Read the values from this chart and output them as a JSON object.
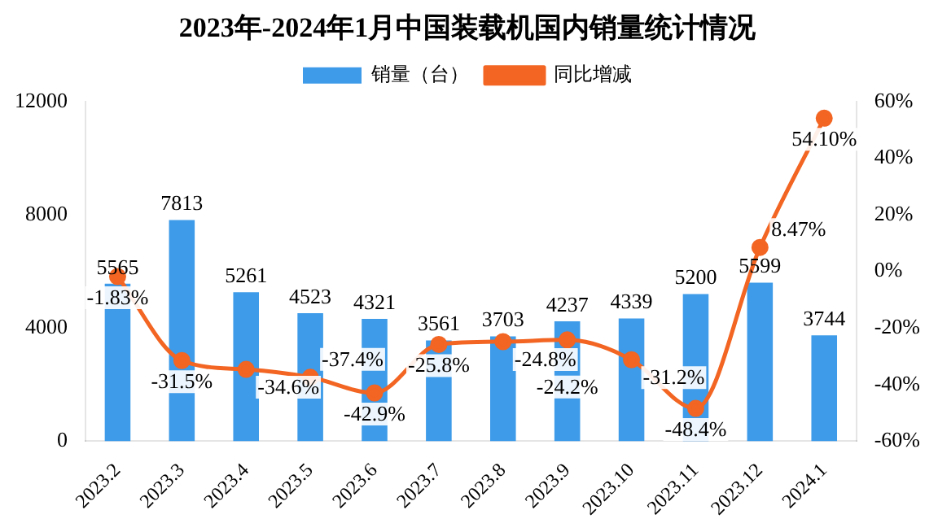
{
  "chart_data": {
    "type": "bar",
    "title": "2023年-2024年1月中国装载机国内销量统计情况",
    "categories": [
      "2023.2",
      "2023.3",
      "2023.4",
      "2023.5",
      "2023.6",
      "2023.7",
      "2023.8",
      "2023.9",
      "2023.10",
      "2023.11",
      "2023.12",
      "2024.1"
    ],
    "series": [
      {
        "name": "销量（台）",
        "color": "#3d9be9",
        "values": [
          5565,
          7813,
          5261,
          4523,
          4321,
          3561,
          3703,
          4237,
          4339,
          5200,
          5599,
          3744
        ],
        "value_labels": [
          "5565",
          "7813",
          "5261",
          "4523",
          "4321",
          "3561",
          "3703",
          "4237",
          "4339",
          "5200",
          "5599",
          "3744"
        ]
      },
      {
        "name": "同比增减",
        "type": "line",
        "axis": "y2",
        "color": "#f26522",
        "marker": "circle",
        "values": [
          -1.83,
          -31.5,
          -34.6,
          -37.4,
          -42.9,
          -25.8,
          -24.8,
          -24.2,
          -31.2,
          -48.4,
          8.47,
          54.1
        ],
        "value_labels": [
          "-1.83%",
          "-31.5%",
          "-34.6%",
          "-37.4%",
          "-42.9%",
          "-25.8%",
          "-24.8%",
          "-24.2%",
          "-31.2%",
          "-48.4%",
          "8.47%",
          "54.10%"
        ]
      }
    ],
    "ylim": [
      0,
      12000
    ],
    "yticks": [
      0,
      4000,
      8000,
      12000
    ],
    "y2lim": [
      -60,
      60
    ],
    "y2ticks": [
      {
        "value": -60,
        "label": "-60%"
      },
      {
        "value": -40,
        "label": "-40%"
      },
      {
        "value": -20,
        "label": "-20%"
      },
      {
        "value": 0,
        "label": "0%"
      },
      {
        "value": 20,
        "label": "20%"
      },
      {
        "value": 40,
        "label": "40%"
      },
      {
        "value": 60,
        "label": "60%"
      }
    ],
    "grid": false,
    "legend": "top"
  }
}
